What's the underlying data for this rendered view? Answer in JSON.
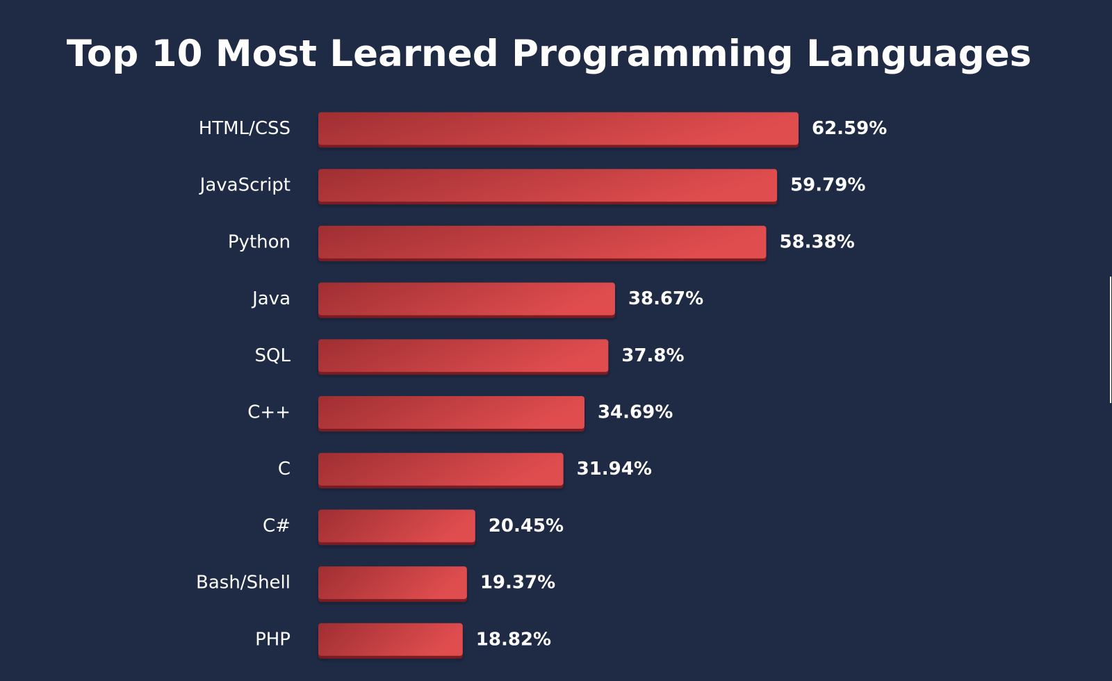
{
  "chart_data": {
    "type": "bar",
    "orientation": "horizontal",
    "title": "Top 10 Most Learned Programming Languages",
    "categories": [
      "HTML/CSS",
      "JavaScript",
      "Python",
      "Java",
      "SQL",
      "C++",
      "C",
      "C#",
      "Bash/Shell",
      "PHP"
    ],
    "values": [
      62.59,
      59.79,
      58.38,
      38.67,
      37.8,
      34.69,
      31.94,
      20.45,
      19.37,
      18.82
    ],
    "value_labels": [
      "62.59%",
      "59.79%",
      "58.38%",
      "38.67%",
      "37.8%",
      "34.69%",
      "31.94%",
      "20.45%",
      "19.37%",
      "18.82%"
    ],
    "unit": "%",
    "xlabel": "",
    "ylabel": "",
    "grid": false,
    "legend": "none"
  },
  "colors": {
    "background": "#1f2a44",
    "bar_start": "#9f2f32",
    "bar_end": "#e04d4f",
    "bar_shadow": "#7a1f22",
    "text": "#ffffff"
  }
}
